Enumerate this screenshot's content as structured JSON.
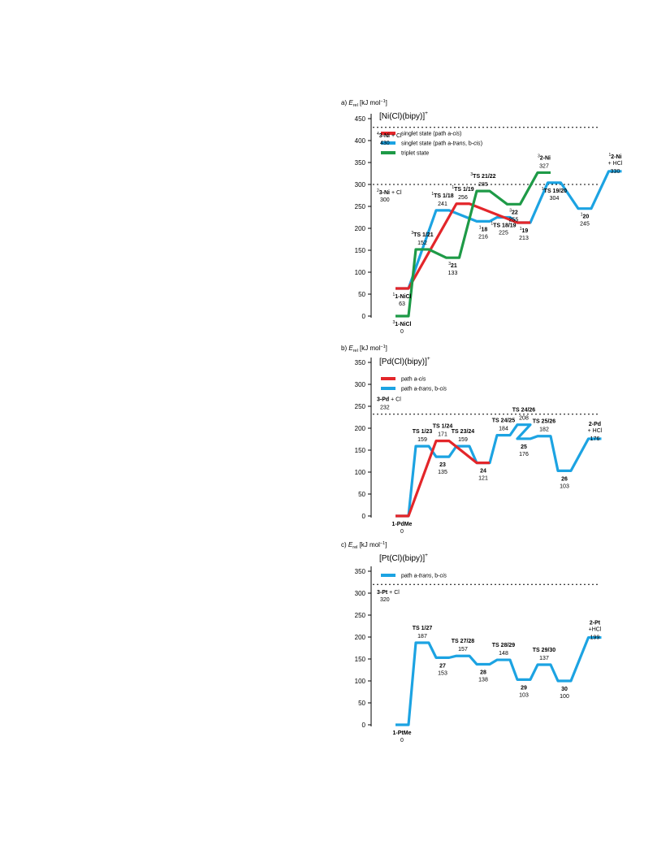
{
  "colors": {
    "red": "#e3262a",
    "blue": "#1ca3e2",
    "green": "#1e9a47",
    "axis": "#000000"
  },
  "chart_data": [
    {
      "type": "line",
      "panel": "a)",
      "title": "[Ni(Cl)(bipy)]",
      "title_sup": "+",
      "ylabel_e": "E",
      "ylabel_sub": "rel",
      "ylabel_unit": "[kJ mol",
      "ylabel_exp": "−1",
      "ylabel_close": "]",
      "ylim": [
        0,
        450
      ],
      "yticks": [
        {
          "v": 0,
          "label": "0"
        },
        {
          "v": 50,
          "label": "50"
        },
        {
          "v": 100,
          "label": "100"
        },
        {
          "v": 150,
          "label": "150"
        },
        {
          "v": 200,
          "label": "200"
        },
        {
          "v": 250,
          "label": "250"
        },
        {
          "v": 300,
          "label": "300"
        },
        {
          "v": 350,
          "label": "350"
        },
        {
          "v": 400,
          "label": "400"
        },
        {
          "v": 450,
          "label": "450"
        }
      ],
      "dashed": [
        430,
        300
      ],
      "legend": [
        {
          "color": "red",
          "parts": [
            {
              "t": "singlet state (path a-"
            },
            {
              "t": "cis",
              "i": true
            },
            {
              "t": ")"
            }
          ]
        },
        {
          "color": "blue",
          "parts": [
            {
              "t": "singlet state (path a-"
            },
            {
              "t": "trans",
              "i": true
            },
            {
              "t": ", b-"
            },
            {
              "t": "cis",
              "i": true
            },
            {
              "t": ")"
            }
          ]
        },
        {
          "color": "green",
          "parts": [
            {
              "t": "triplet state"
            }
          ]
        }
      ],
      "series": [
        {
          "color": "blue",
          "points": [
            [
              1,
              63
            ],
            [
              3,
              241
            ],
            [
              5,
              216
            ],
            [
              6,
              225
            ],
            [
              7,
              213
            ],
            [
              8.5,
              304
            ],
            [
              10,
              245
            ],
            [
              11.5,
              330
            ]
          ]
        },
        {
          "color": "red",
          "points": [
            [
              1,
              63
            ],
            [
              4,
              256
            ],
            [
              7,
              213
            ]
          ]
        },
        {
          "color": "green",
          "points": [
            [
              1,
              0
            ],
            [
              2,
              152
            ],
            [
              3.5,
              133
            ],
            [
              5,
              285
            ],
            [
              6.5,
              255
            ],
            [
              8,
              327
            ]
          ]
        }
      ],
      "labels": [
        {
          "x": 1,
          "y": 63,
          "pos": "below",
          "sup": "1",
          "name": "1-NiCl",
          "val": "63"
        },
        {
          "x": 1,
          "y": 0,
          "pos": "below",
          "sup": "3",
          "name": "1-NiCl",
          "val": "0"
        },
        {
          "x": 2,
          "y": 152,
          "pos": "above",
          "sup": "3",
          "name": "TS 1/21",
          "val": "152"
        },
        {
          "x": 3,
          "y": 241,
          "pos": "above",
          "sup": "1",
          "name": "TS 1/18",
          "val": "241"
        },
        {
          "x": 3.5,
          "y": 133,
          "pos": "below",
          "sup": "3",
          "name": "21",
          "val": "133"
        },
        {
          "x": 4,
          "y": 256,
          "pos": "above",
          "sup": "1",
          "name": "TS 1/19",
          "val": "256"
        },
        {
          "x": 5,
          "y": 216,
          "pos": "below",
          "sup": "1",
          "name": "18",
          "val": "216"
        },
        {
          "x": 5,
          "y": 285,
          "pos": "above",
          "sup": "3",
          "name": "TS 21/22",
          "val": "285"
        },
        {
          "x": 6,
          "y": 225,
          "pos": "below",
          "sup": "1",
          "name": "TS 18/19",
          "val": "225"
        },
        {
          "x": 6.5,
          "y": 255,
          "pos": "below",
          "sup": "3",
          "name": "22",
          "val": "255"
        },
        {
          "x": 7,
          "y": 213,
          "pos": "below",
          "sup": "1",
          "name": "19",
          "val": "213"
        },
        {
          "x": 8,
          "y": 327,
          "pos": "above",
          "sup": "3",
          "name": "2-Ni",
          "val": "327"
        },
        {
          "x": 8.5,
          "y": 304,
          "pos": "below",
          "sup": "1",
          "name": "TS 19/20",
          "val": "304"
        },
        {
          "x": 10,
          "y": 245,
          "pos": "below",
          "sup": "1",
          "name": "20",
          "val": "245"
        },
        {
          "x": 11.5,
          "y": 330,
          "pos": "above",
          "sup": "1",
          "name": "2-Ni",
          "extra": "+ HCl",
          "val": "330"
        },
        {
          "x": 0.6,
          "y": 430,
          "pos": "below",
          "sup": "4",
          "name": "3-Ni",
          "extra": " + Cl",
          "inline": true,
          "val": "430"
        },
        {
          "x": 0.6,
          "y": 300,
          "pos": "below",
          "sup": "2",
          "name": "3-Ni",
          "extra": " + Cl",
          "inline": true,
          "val": "300"
        }
      ]
    },
    {
      "type": "line",
      "panel": "b)",
      "title": "[Pd(Cl)(bipy)]",
      "title_sup": "+",
      "ylabel_e": "E",
      "ylabel_sub": "rel",
      "ylabel_unit": "[kJ mol",
      "ylabel_exp": "−1",
      "ylabel_close": "]",
      "ylim": [
        0,
        350
      ],
      "yticks": [
        {
          "v": 0,
          "label": "0"
        },
        {
          "v": 50,
          "label": "50"
        },
        {
          "v": 100,
          "label": "100"
        },
        {
          "v": 150,
          "label": "150"
        },
        {
          "v": 200,
          "label": "200"
        },
        {
          "v": 250,
          "label": "250"
        },
        {
          "v": 300,
          "label": "300"
        },
        {
          "v": 350,
          "label": "350"
        }
      ],
      "dashed": [
        232
      ],
      "legend": [
        {
          "color": "red",
          "parts": [
            {
              "t": "path a-"
            },
            {
              "t": "cis",
              "i": true
            }
          ]
        },
        {
          "color": "blue",
          "parts": [
            {
              "t": "path a-"
            },
            {
              "t": "trans",
              "i": true
            },
            {
              "t": ", b-"
            },
            {
              "t": "cis",
              "i": true
            }
          ]
        }
      ],
      "series": [
        {
          "color": "blue",
          "points": [
            [
              1,
              0
            ],
            [
              2,
              159
            ],
            [
              3,
              135
            ],
            [
              4,
              159
            ],
            [
              5,
              121
            ],
            [
              6,
              184
            ],
            [
              7,
              208
            ],
            [
              7,
              176
            ],
            [
              8,
              182
            ],
            [
              9,
              103
            ],
            [
              10.5,
              176
            ]
          ]
        },
        {
          "color": "red",
          "points": [
            [
              1,
              0
            ],
            [
              3,
              171
            ],
            [
              5,
              121
            ]
          ]
        }
      ],
      "labels": [
        {
          "x": 1,
          "y": 0,
          "pos": "below",
          "name": "1-PdMe",
          "val": "0"
        },
        {
          "x": 2,
          "y": 159,
          "pos": "above",
          "name": "TS 1/23",
          "val": "159"
        },
        {
          "x": 3,
          "y": 171,
          "pos": "above",
          "name": "TS 1/24",
          "val": "171"
        },
        {
          "x": 3,
          "y": 135,
          "pos": "below",
          "name": "23",
          "val": "135"
        },
        {
          "x": 4,
          "y": 159,
          "pos": "above",
          "name": "TS 23/24",
          "val": "159"
        },
        {
          "x": 5,
          "y": 121,
          "pos": "below",
          "name": "24",
          "val": "121"
        },
        {
          "x": 6,
          "y": 184,
          "pos": "above",
          "name": "TS 24/25",
          "val": "184"
        },
        {
          "x": 7,
          "y": 208,
          "pos": "above",
          "name": "TS 24/26",
          "val": "208"
        },
        {
          "x": 7,
          "y": 176,
          "pos": "below",
          "name": "25",
          "val": "176"
        },
        {
          "x": 8,
          "y": 182,
          "pos": "above",
          "name": "TS 25/26",
          "val": "182"
        },
        {
          "x": 9,
          "y": 103,
          "pos": "below",
          "name": "26",
          "val": "103"
        },
        {
          "x": 10.5,
          "y": 176,
          "pos": "above",
          "name": "2-Pd",
          "extra": "+ HCl",
          "val": "176"
        },
        {
          "x": 0.6,
          "y": 232,
          "pos": "above",
          "name": "3-Pd",
          "extra": " + Cl",
          "inline": true,
          "val": "232"
        }
      ]
    },
    {
      "type": "line",
      "panel": "c)",
      "title": "[Pt(Cl)(bipy)]",
      "title_sup": "+",
      "ylabel_e": "E",
      "ylabel_sub": "rel",
      "ylabel_unit": "[kJ mol",
      "ylabel_exp": "−1",
      "ylabel_close": "]",
      "ylim": [
        0,
        350
      ],
      "yticks": [
        {
          "v": 0,
          "label": "0"
        },
        {
          "v": 50,
          "label": "50"
        },
        {
          "v": 100,
          "label": "100"
        },
        {
          "v": 150,
          "label": "150"
        },
        {
          "v": 200,
          "label": "200"
        },
        {
          "v": 250,
          "label": "250"
        },
        {
          "v": 300,
          "label": "300"
        },
        {
          "v": 350,
          "label": "350"
        }
      ],
      "dashed": [
        320
      ],
      "legend": [
        {
          "color": "blue",
          "parts": [
            {
              "t": "path a-"
            },
            {
              "t": "trans",
              "i": true
            },
            {
              "t": ", b-"
            },
            {
              "t": "cis",
              "i": true
            }
          ]
        }
      ],
      "series": [
        {
          "color": "blue",
          "points": [
            [
              1,
              0
            ],
            [
              2,
              187
            ],
            [
              3,
              153
            ],
            [
              4,
              157
            ],
            [
              5,
              138
            ],
            [
              6,
              148
            ],
            [
              7,
              103
            ],
            [
              8,
              137
            ],
            [
              9,
              100
            ],
            [
              10.5,
              199
            ]
          ]
        }
      ],
      "labels": [
        {
          "x": 1,
          "y": 0,
          "pos": "below",
          "name": "1-PtMe",
          "val": "0"
        },
        {
          "x": 2,
          "y": 187,
          "pos": "above",
          "name": "TS 1/27",
          "val": "187"
        },
        {
          "x": 3,
          "y": 153,
          "pos": "below",
          "name": "27",
          "val": "153"
        },
        {
          "x": 4,
          "y": 157,
          "pos": "above",
          "name": "TS 27/28",
          "val": "157"
        },
        {
          "x": 5,
          "y": 138,
          "pos": "below",
          "name": "28",
          "val": "138"
        },
        {
          "x": 6,
          "y": 148,
          "pos": "above",
          "name": "TS 28/29",
          "val": "148"
        },
        {
          "x": 7,
          "y": 103,
          "pos": "below",
          "name": "29",
          "val": "103"
        },
        {
          "x": 8,
          "y": 137,
          "pos": "above",
          "name": "TS 29/30",
          "val": "137"
        },
        {
          "x": 9,
          "y": 100,
          "pos": "below",
          "name": "30",
          "val": "100"
        },
        {
          "x": 10.5,
          "y": 199,
          "pos": "above",
          "name": "2-Pt",
          "extra": "+HCl",
          "val": "199"
        },
        {
          "x": 0.6,
          "y": 320,
          "pos": "below",
          "name": "3-Pt",
          "extra": " + Cl",
          "inline": true,
          "val": "320"
        }
      ]
    }
  ]
}
